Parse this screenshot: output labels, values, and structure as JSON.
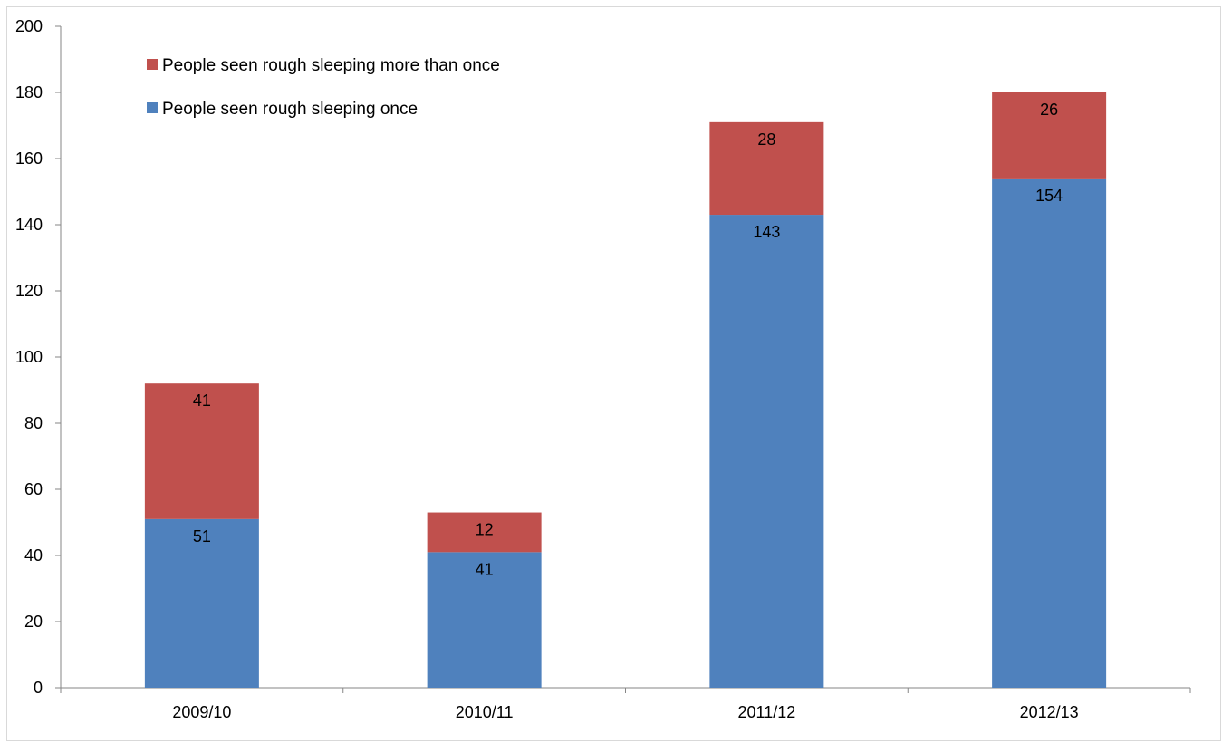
{
  "chart_data": {
    "type": "bar",
    "stacked": true,
    "categories": [
      "2009/10",
      "2010/11",
      "2011/12",
      "2012/13"
    ],
    "series": [
      {
        "name": "People seen rough sleeping once",
        "color": "#4F81BD",
        "values": [
          51,
          41,
          143,
          154
        ]
      },
      {
        "name": "People seen rough sleeping more than once",
        "color": "#C0504D",
        "values": [
          41,
          12,
          28,
          26
        ]
      }
    ],
    "ylim": [
      0,
      200
    ],
    "ytick_step": 20,
    "legend_placement": "top-left",
    "grid": false
  }
}
